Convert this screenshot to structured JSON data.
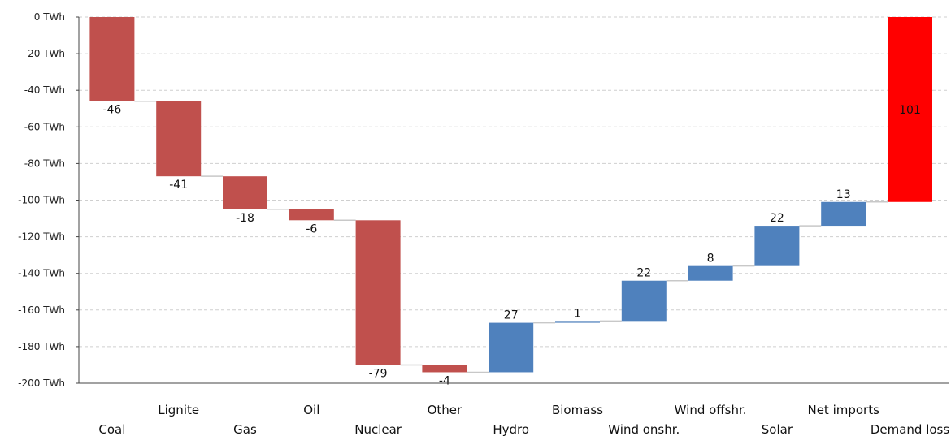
{
  "chart_data": {
    "type": "waterfall",
    "ylim": [
      -200,
      0
    ],
    "yticks": [
      0,
      -20,
      -40,
      -60,
      -80,
      -100,
      -120,
      -140,
      -160,
      -180,
      -200
    ],
    "ytick_suffix": " TWh",
    "grid": true,
    "colors": {
      "negative": "#c0504d",
      "positive": "#4f81bd",
      "total": "#ff0000"
    },
    "categories": [
      "Coal",
      "Lignite",
      "Gas",
      "Oil",
      "Nuclear",
      "Other",
      "Hydro",
      "Biomass",
      "Wind onshr.",
      "Wind offshr.",
      "Solar",
      "Net imports",
      "Demand loss"
    ],
    "values": [
      -46,
      -41,
      -18,
      -6,
      -79,
      -4,
      27,
      1,
      22,
      8,
      22,
      13,
      101
    ],
    "labels": [
      "-46",
      "-41",
      "-18",
      "-6",
      "-79",
      "-4",
      "27",
      "1",
      "22",
      "8",
      "22",
      "13",
      "101"
    ],
    "kinds": [
      "negative",
      "negative",
      "negative",
      "negative",
      "negative",
      "negative",
      "positive",
      "positive",
      "positive",
      "positive",
      "positive",
      "positive",
      "total"
    ]
  }
}
